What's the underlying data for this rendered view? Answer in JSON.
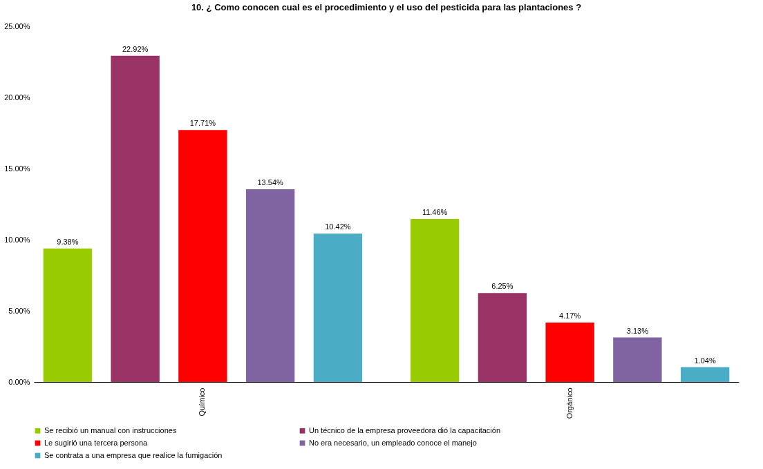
{
  "chart_data": {
    "type": "bar",
    "title": "10. ¿ Como conocen cual es el procedimiento y el uso del pesticida para las plantaciones ?",
    "categories": [
      "Químico",
      "Orgánico"
    ],
    "series": [
      {
        "name": "Se recibió un manual con instrucciones",
        "color": "#99cc00",
        "values": [
          9.38,
          11.46
        ],
        "value_labels": [
          "9.38%",
          "11.46%"
        ]
      },
      {
        "name": "Un técnico de la empresa proveedora dió la capacitación",
        "color": "#993366",
        "values": [
          22.92,
          6.25
        ],
        "value_labels": [
          "22.92%",
          "6.25%"
        ]
      },
      {
        "name": "Le sugirió una tercera persona",
        "color": "#ff0000",
        "values": [
          17.71,
          4.17
        ],
        "value_labels": [
          "17.71%",
          "4.17%"
        ]
      },
      {
        "name": "No era necesario, un empleado conoce el manejo",
        "color": "#8064a2",
        "values": [
          13.54,
          3.13
        ],
        "value_labels": [
          "13.54%",
          "3.13%"
        ]
      },
      {
        "name": "Se contrata a una empresa que realice la fumigación",
        "color": "#4bacc6",
        "values": [
          10.42,
          1.04
        ],
        "value_labels": [
          "10.42%",
          "1.04%"
        ]
      }
    ],
    "ylim": [
      0,
      25
    ],
    "yticks": [
      {
        "value": 0,
        "label": "0.00%"
      },
      {
        "value": 5,
        "label": "5.00%"
      },
      {
        "value": 10,
        "label": "10.00%"
      },
      {
        "value": 15,
        "label": "15.00%"
      },
      {
        "value": 20,
        "label": "20.00%"
      },
      {
        "value": 25,
        "label": "25.00%"
      }
    ],
    "legend": "bottom"
  }
}
